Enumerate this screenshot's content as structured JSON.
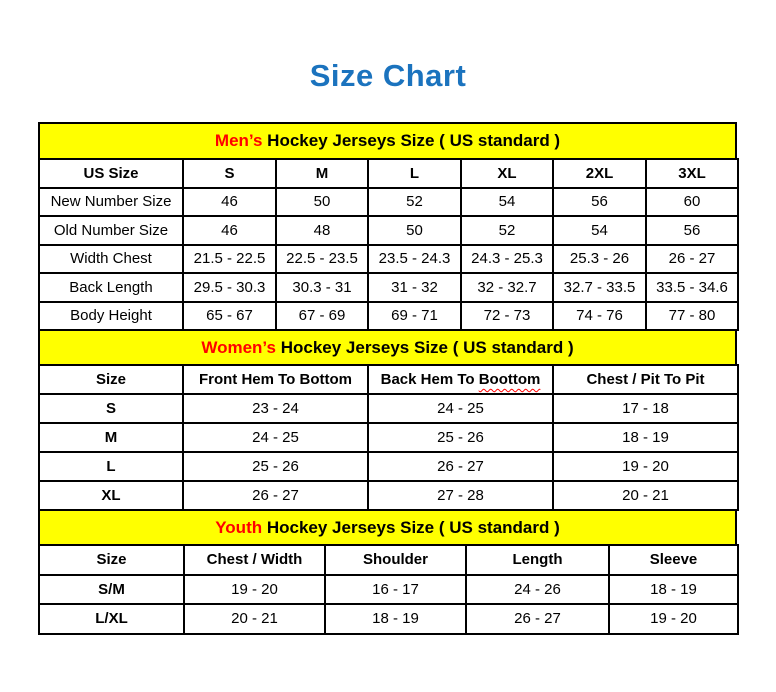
{
  "page": {
    "title": "Size Chart"
  },
  "colors": {
    "title_blue": "#1b73be",
    "band_yellow": "#ffff00",
    "accent_red": "#ff0000",
    "grid_border": "#000000"
  },
  "sections": [
    {
      "id": "mens",
      "heading": {
        "highlight": "Men’s",
        "rest": " Hockey Jerseys Size ( US standard )"
      },
      "columns": [
        "US Size",
        "S",
        "M",
        "L",
        "XL",
        "2XL",
        "3XL"
      ],
      "rows": [
        {
          "label": "New Number Size",
          "values": [
            "46",
            "50",
            "52",
            "54",
            "56",
            "60"
          ]
        },
        {
          "label": "Old Number Size",
          "values": [
            "46",
            "48",
            "50",
            "52",
            "54",
            "56"
          ]
        },
        {
          "label": "Width Chest",
          "values": [
            "21.5 - 22.5",
            "22.5 - 23.5",
            "23.5 - 24.3",
            "24.3 - 25.3",
            "25.3 - 26",
            "26 - 27"
          ]
        },
        {
          "label": "Back Length",
          "values": [
            "29.5 - 30.3",
            "30.3 - 31",
            "31 - 32",
            "32 - 32.7",
            "32.7 - 33.5",
            "33.5 - 34.6"
          ]
        },
        {
          "label": "Body Height",
          "values": [
            "65 - 67",
            "67 - 69",
            "69 - 71",
            "72 - 73",
            "74 - 76",
            "77 - 80"
          ]
        }
      ]
    },
    {
      "id": "womens",
      "heading": {
        "highlight": "Women’s",
        "rest": " Hockey Jerseys Size ( US standard )"
      },
      "columns": [
        "Size",
        "Front Hem To Bottom",
        "Back Hem To Boottom",
        "Chest / Pit To Pit"
      ],
      "squiggle": {
        "col": 2,
        "word": "Boottom"
      },
      "rows": [
        {
          "label": "S",
          "values": [
            "23 - 24",
            "24 - 25",
            "17 - 18"
          ]
        },
        {
          "label": "M",
          "values": [
            "24 - 25",
            "25 - 26",
            "18 - 19"
          ]
        },
        {
          "label": "L",
          "values": [
            "25 - 26",
            "26 - 27",
            "19 - 20"
          ]
        },
        {
          "label": "XL",
          "values": [
            "26 - 27",
            "27 - 28",
            "20 - 21"
          ]
        }
      ]
    },
    {
      "id": "youth",
      "heading": {
        "highlight": "Youth",
        "rest": " Hockey Jerseys Size ( US standard )"
      },
      "columns": [
        "Size",
        "Chest / Width",
        "Shoulder",
        "Length",
        "Sleeve"
      ],
      "rows": [
        {
          "label": "S/M",
          "values": [
            "19 - 20",
            "16 - 17",
            "24 - 26",
            "18 - 19"
          ]
        },
        {
          "label": "L/XL",
          "values": [
            "20 - 21",
            "18 - 19",
            "26 - 27",
            "19 - 20"
          ]
        }
      ]
    }
  ]
}
